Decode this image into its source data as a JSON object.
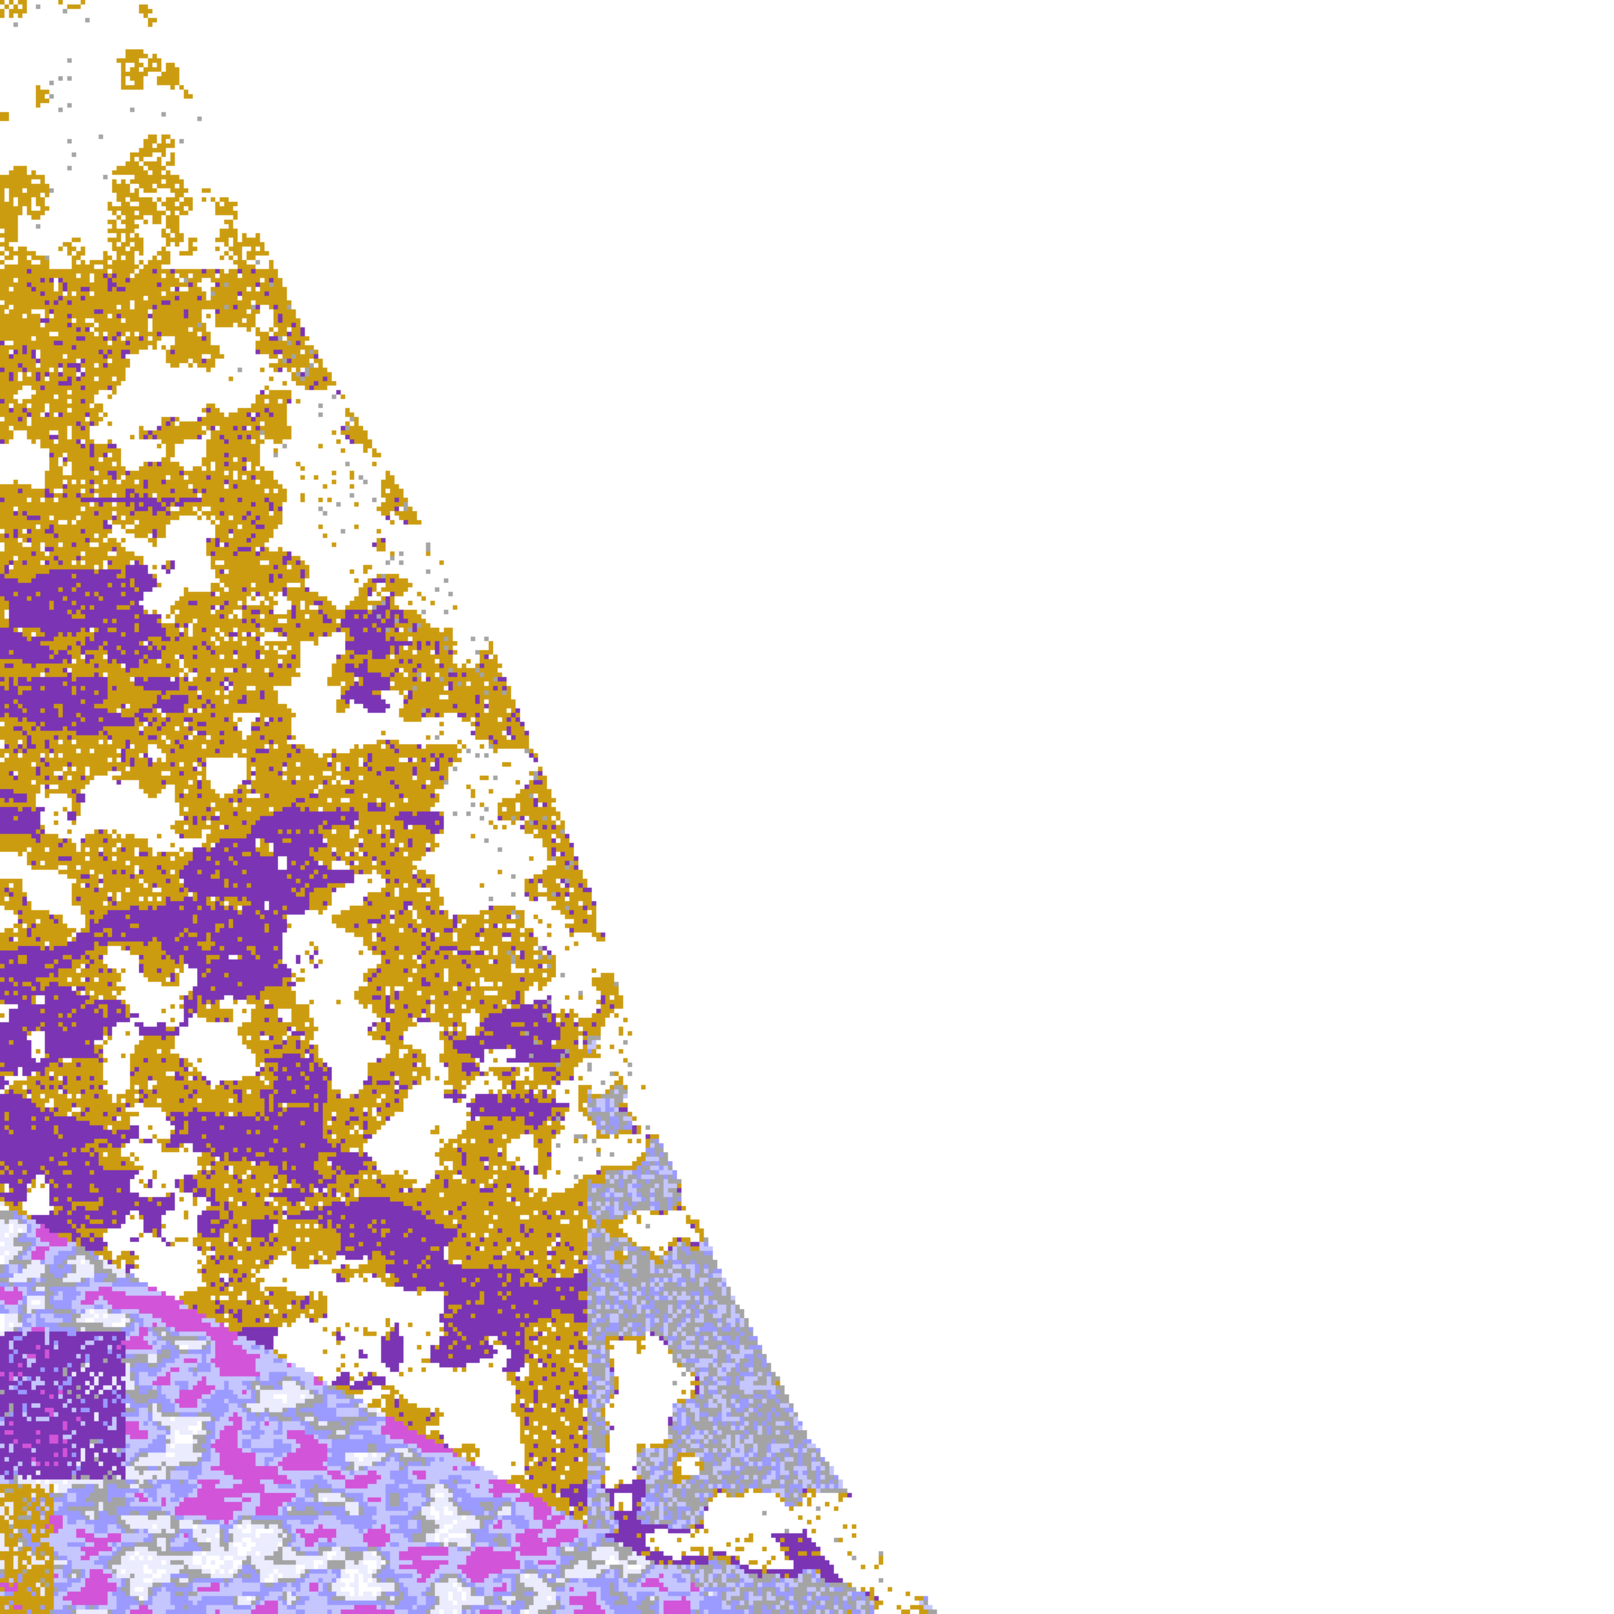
{
  "image": {
    "kind": "satellite swath classification map",
    "background": "#ffffff",
    "class_colors": {
      "gold": "#cc9c10",
      "purple": "#7a34b4",
      "lavender": "#c6c6ff",
      "periwinkle": "#9a9aff",
      "gray": "#a4a4a4",
      "magenta": "#d254d8",
      "pale": "#ececff"
    }
  }
}
